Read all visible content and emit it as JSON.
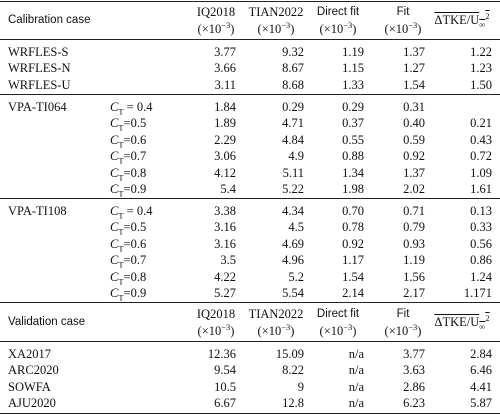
{
  "calibration_header": {
    "case": "Calibration case",
    "columns": [
      {
        "name": "IQ2018",
        "unit": {
          "pre": "(×10",
          "exp": "−3",
          "post": ")"
        }
      },
      {
        "name": "TIAN2022",
        "unit": {
          "pre": "(×10",
          "exp": "−3",
          "post": ")"
        }
      },
      {
        "name": "Direct fit",
        "unit": {
          "pre": "(×10",
          "exp": "−3",
          "post": ")"
        }
      },
      {
        "name": "Fit",
        "unit": {
          "pre": "(×10",
          "exp": "−3",
          "post": ")"
        }
      }
    ],
    "tke": {
      "main": "ΔTKE/U",
      "sub": "∞",
      "sup": "2"
    }
  },
  "groups": [
    {
      "rows": [
        {
          "case": "WRFLES-S",
          "values": [
            "3.77",
            "9.32",
            "1.19",
            "1.37",
            "1.22"
          ]
        },
        {
          "case": "WRFLES-N",
          "values": [
            "3.66",
            "8.67",
            "1.15",
            "1.27",
            "1.23"
          ]
        },
        {
          "case": "WRFLES-U",
          "values": [
            "3.11",
            "8.68",
            "1.33",
            "1.54",
            "1.50"
          ]
        }
      ]
    },
    {
      "rows": [
        {
          "case": "VPA-TI064",
          "ct": {
            "c": "C",
            "sub": "T",
            "eq": " = 0.4"
          },
          "values": [
            "1.84",
            "0.29",
            "0.29",
            "0.31",
            null
          ]
        },
        {
          "ct": {
            "c": "C",
            "sub": "T",
            "eq": "=0.5"
          },
          "values": [
            "1.89",
            "4.71",
            "0.37",
            "0.40",
            "0.21"
          ]
        },
        {
          "ct": {
            "c": "C",
            "sub": "T",
            "eq": "=0.6"
          },
          "values": [
            "2.29",
            "4.84",
            "0.55",
            "0.59",
            "0.43"
          ]
        },
        {
          "ct": {
            "c": "C",
            "sub": "T",
            "eq": "=0.7"
          },
          "values": [
            "3.06",
            "4.9",
            "0.88",
            "0.92",
            "0.72"
          ]
        },
        {
          "ct": {
            "c": "C",
            "sub": "T",
            "eq": "=0.8"
          },
          "values": [
            "4.12",
            "5.11",
            "1.34",
            "1.37",
            "1.09"
          ]
        },
        {
          "ct": {
            "c": "C",
            "sub": "T",
            "eq": "=0.9"
          },
          "values": [
            "5.4",
            "5.22",
            "1.98",
            "2.02",
            "1.61"
          ]
        }
      ]
    },
    {
      "rows": [
        {
          "case": "VPA-TI108",
          "ct": {
            "c": "C",
            "sub": "T",
            "eq": " = 0.4"
          },
          "values": [
            "3.38",
            "4.34",
            "0.70",
            "0.71",
            "0.13"
          ]
        },
        {
          "ct": {
            "c": "C",
            "sub": "T",
            "eq": "=0.5"
          },
          "values": [
            "3.16",
            "4.5",
            "0.78",
            "0.79",
            "0.33"
          ]
        },
        {
          "ct": {
            "c": "C",
            "sub": "T",
            "eq": "=0.6"
          },
          "values": [
            "3.16",
            "4.69",
            "0.92",
            "0.93",
            "0.56"
          ]
        },
        {
          "ct": {
            "c": "C",
            "sub": "T",
            "eq": "=0.7"
          },
          "values": [
            "3.5",
            "4.96",
            "1.17",
            "1.19",
            "0.86"
          ]
        },
        {
          "ct": {
            "c": "C",
            "sub": "T",
            "eq": "=0.8"
          },
          "values": [
            "4.22",
            "5.2",
            "1.54",
            "1.56",
            "1.24"
          ]
        },
        {
          "ct": {
            "c": "C",
            "sub": "T",
            "eq": "=0.9"
          },
          "values": [
            "5.27",
            "5.54",
            "2.14",
            "2.17",
            "1.171"
          ]
        }
      ]
    }
  ],
  "validation_header": {
    "case": "Validation case",
    "columns": [
      {
        "name": "IQ2018",
        "unit": {
          "pre": "(×10",
          "exp": "−3",
          "post": ")"
        }
      },
      {
        "name": "TIAN2022",
        "unit": {
          "pre": "(×10",
          "exp": "−3",
          "post": ")"
        }
      },
      {
        "name": "Direct fit",
        "unit": {
          "pre": "(×10",
          "exp": "−3",
          "post": ")"
        }
      },
      {
        "name": "Fit",
        "unit": {
          "pre": "(×10",
          "exp": "−3",
          "post": ")"
        }
      }
    ],
    "tke": {
      "main": "ΔTKE/U",
      "sub": "∞",
      "sup": "2"
    }
  },
  "validation": {
    "rows": [
      {
        "case": "XA2017",
        "values": [
          "12.36",
          "15.09",
          "n/a",
          "3.77",
          "2.84"
        ]
      },
      {
        "case": "ARC2020",
        "values": [
          "9.54",
          "8.22",
          "n/a",
          "3.63",
          "6.46"
        ]
      },
      {
        "case": "SOWFA",
        "values": [
          "10.5",
          "9",
          "n/a",
          "2.86",
          "4.41"
        ]
      },
      {
        "case": "AJU2020",
        "values": [
          "6.67",
          "12.8",
          "n/a",
          "6.23",
          "5.87"
        ]
      }
    ]
  }
}
